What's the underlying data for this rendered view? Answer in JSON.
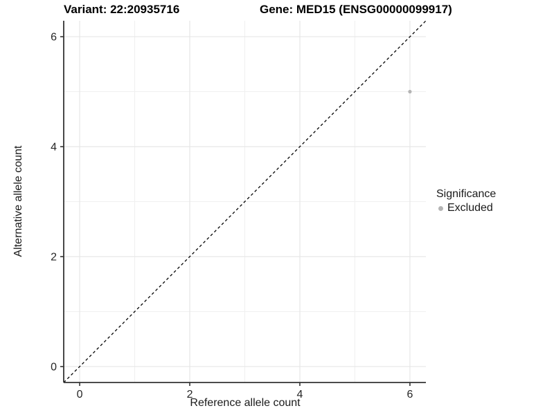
{
  "chart_data": {
    "type": "scatter",
    "title": {
      "left": "Variant: 22:20935716",
      "right": "Gene: MED15 (ENSG00000099917)"
    },
    "xlabel": "Reference allele count",
    "ylabel": "Alternative allele count",
    "xlim": [
      -0.29,
      6.29
    ],
    "ylim": [
      -0.29,
      6.29
    ],
    "x_ticks": [
      0,
      2,
      4,
      6
    ],
    "y_ticks": [
      0,
      2,
      4,
      6
    ],
    "x_minor_ticks": [
      1,
      3,
      5
    ],
    "y_minor_ticks": [
      1,
      3,
      5
    ],
    "grid": true,
    "series": [
      {
        "name": "Excluded",
        "points": [
          {
            "x": 6,
            "y": 5
          }
        ],
        "color": "#b4b4b4"
      }
    ],
    "reference_line": {
      "type": "identity",
      "from": [
        -0.29,
        -0.29
      ],
      "to": [
        6.29,
        6.29
      ],
      "style": "dashed",
      "color": "#000000"
    },
    "legend": {
      "title": "Significance",
      "position": "right",
      "entries": [
        {
          "label": "Excluded",
          "color": "#b4b4b4"
        }
      ]
    },
    "colors": {
      "background": "#ffffff",
      "axis_line": "#333333",
      "major_grid": "#e6e6e6",
      "minor_grid": "#f0f0f0",
      "tick_text": "#262626",
      "point": "#b4b4b4"
    }
  }
}
